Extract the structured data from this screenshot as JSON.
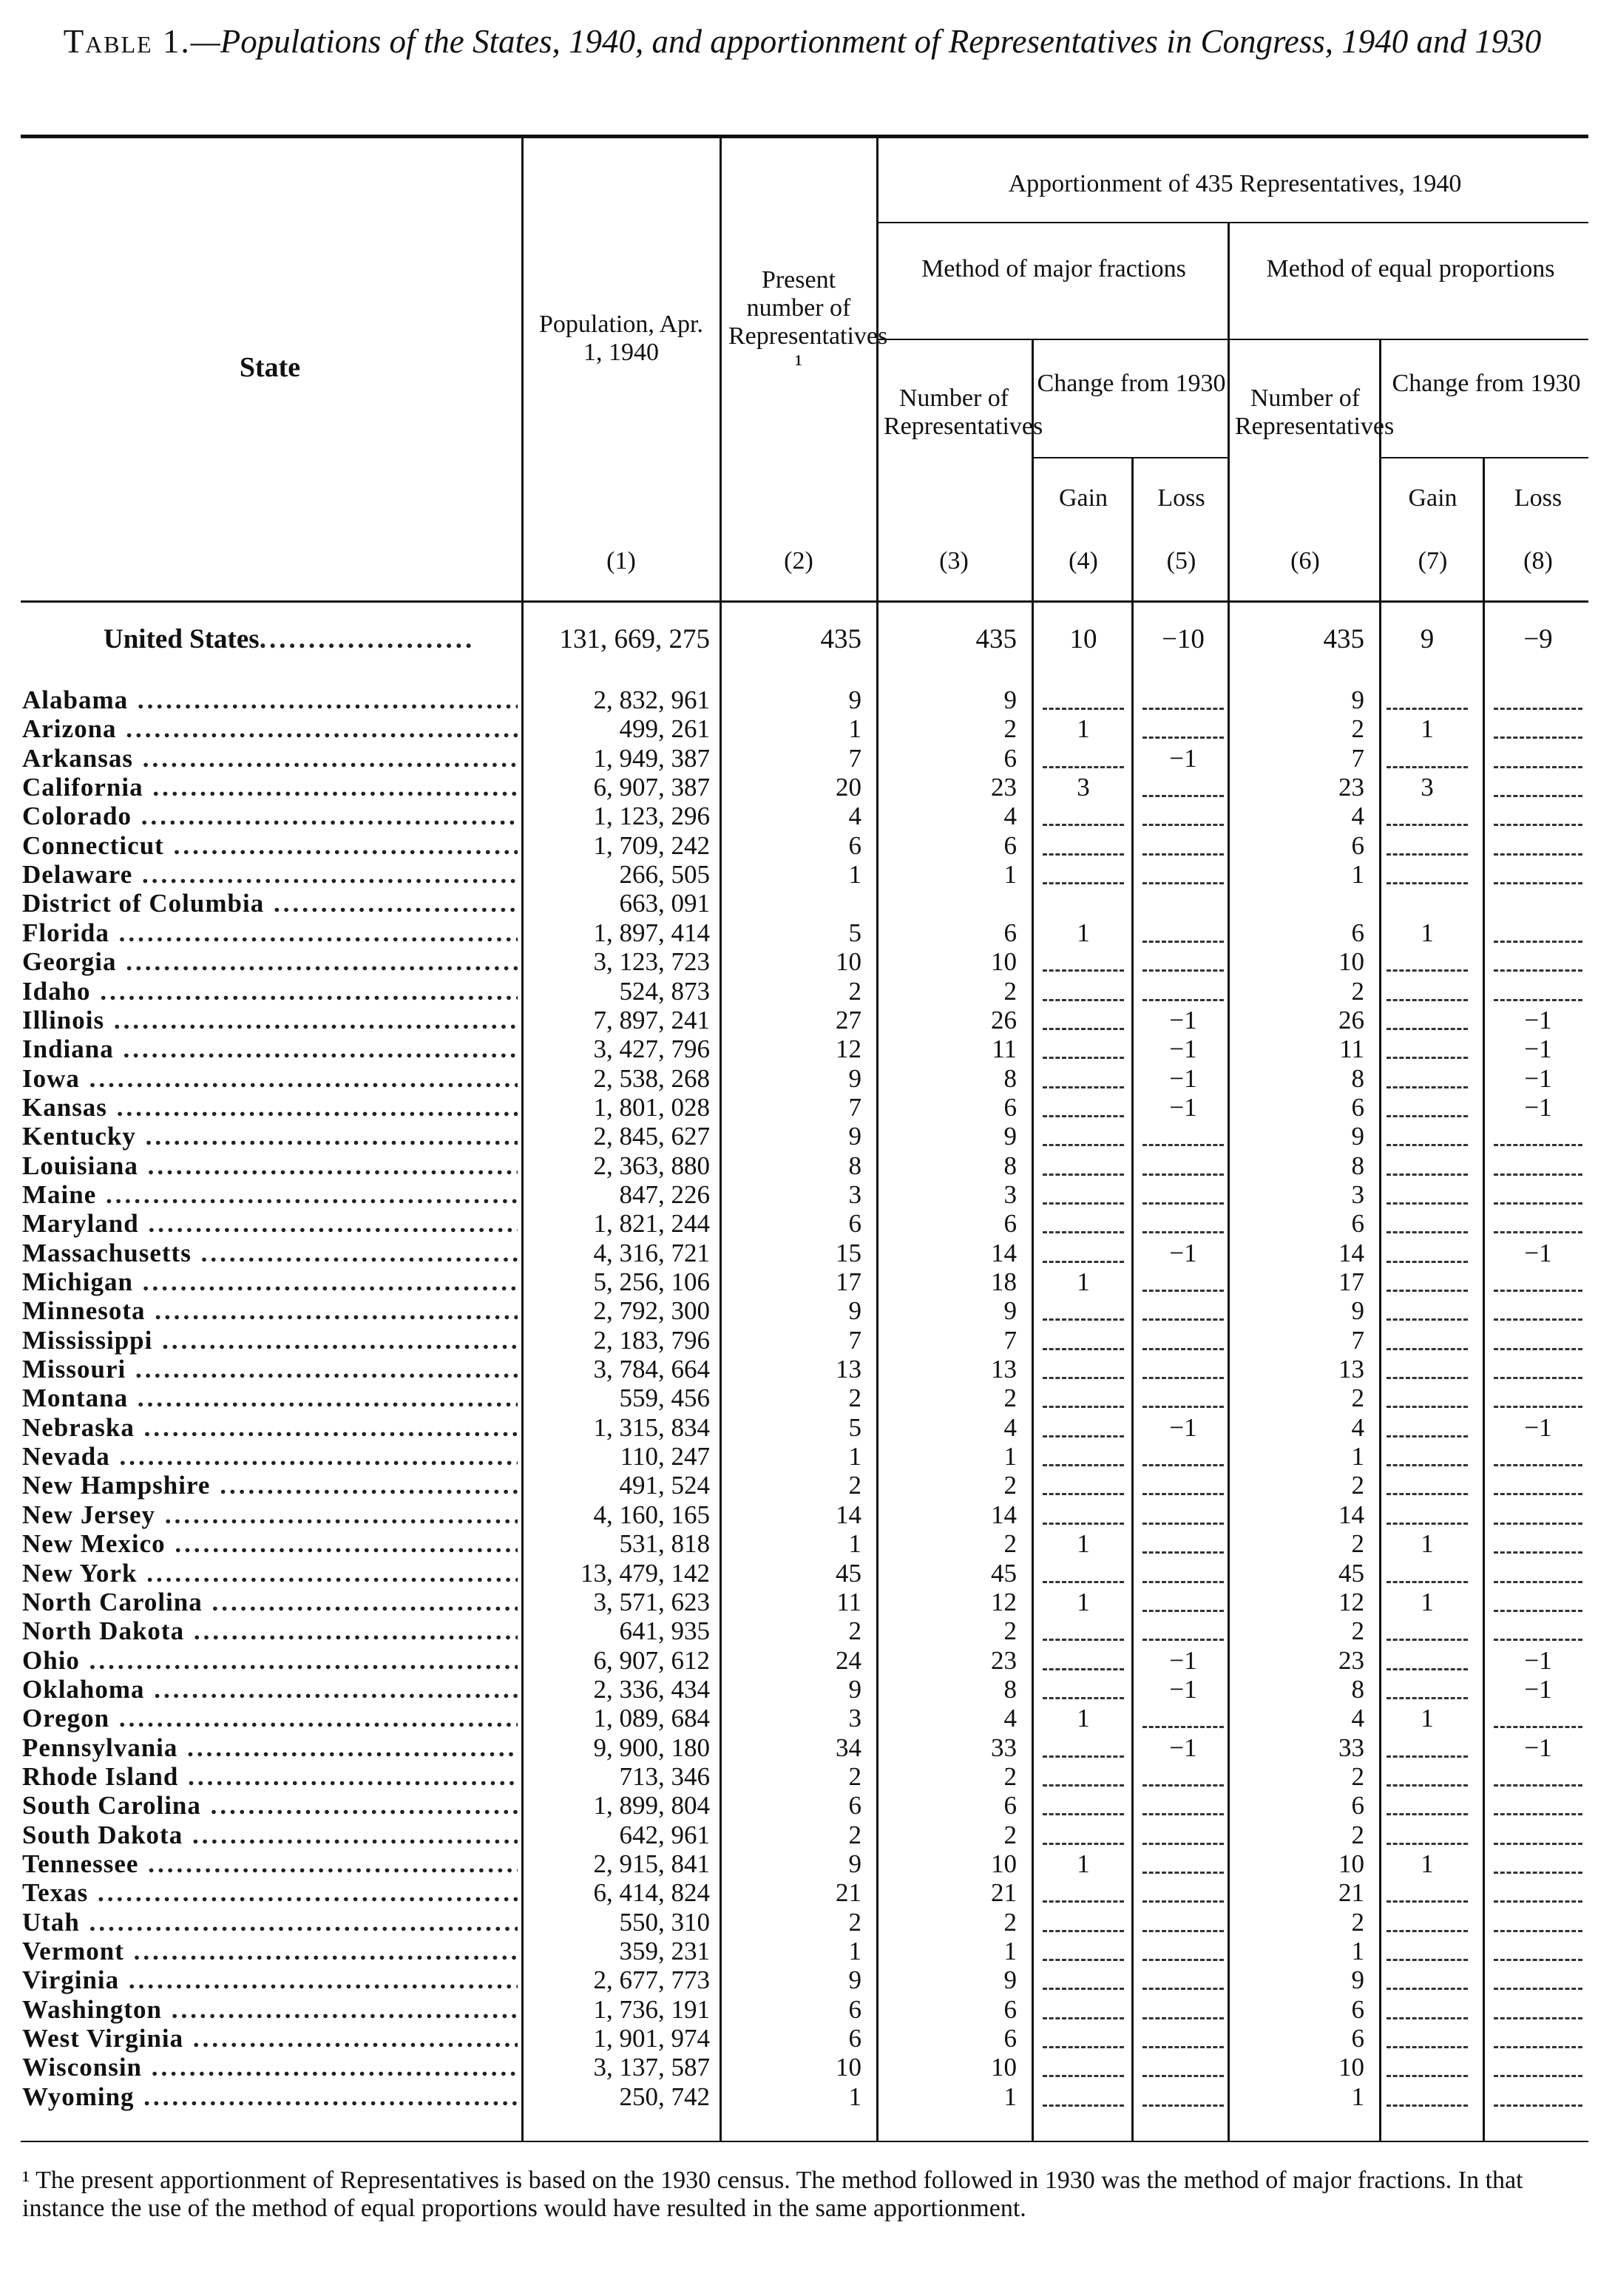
{
  "title": {
    "lead": "Table 1.",
    "text": "—Populations of the States, 1940, and apportionment of Representatives in Congress, 1940 and 1930"
  },
  "headers": {
    "state": "State",
    "population": "Population, Apr. 1, 1940",
    "present": "Present number of Representatives ¹",
    "apportionment": "Apportionment of 435 Representatives, 1940",
    "major": "Method of major fractions",
    "equal": "Method of equal proportions",
    "number_reps_a": "Number of Representatives",
    "number_reps_b": "Number of Representatives",
    "change_a": "Change from 1930",
    "change_b": "Change from 1930",
    "gain_a": "Gain",
    "loss_a": "Loss",
    "gain_b": "Gain",
    "loss_b": "Loss",
    "colnums": [
      "(1)",
      "(2)",
      "(3)",
      "(4)",
      "(5)",
      "(6)",
      "(7)",
      "(8)"
    ]
  },
  "totals": {
    "state": "United States",
    "population": "131, 669, 275",
    "present": "435",
    "major_num": "435",
    "major_gain": "10",
    "major_loss": "−10",
    "equal_num": "435",
    "equal_gain": "9",
    "equal_loss": "−9"
  },
  "rows": [
    {
      "state": "Alabama",
      "pop": "2, 832, 961",
      "present": "9",
      "mf": "9",
      "mf_gain": "",
      "mf_loss": "",
      "ep": "9",
      "ep_gain": "",
      "ep_loss": ""
    },
    {
      "state": "Arizona",
      "pop": "499, 261",
      "present": "1",
      "mf": "2",
      "mf_gain": "1",
      "mf_loss": "",
      "ep": "2",
      "ep_gain": "1",
      "ep_loss": ""
    },
    {
      "state": "Arkansas",
      "pop": "1, 949, 387",
      "present": "7",
      "mf": "6",
      "mf_gain": "",
      "mf_loss": "−1",
      "ep": "7",
      "ep_gain": "",
      "ep_loss": ""
    },
    {
      "state": "California",
      "pop": "6, 907, 387",
      "present": "20",
      "mf": "23",
      "mf_gain": "3",
      "mf_loss": "",
      "ep": "23",
      "ep_gain": "3",
      "ep_loss": ""
    },
    {
      "state": "Colorado",
      "pop": "1, 123, 296",
      "present": "4",
      "mf": "4",
      "mf_gain": "",
      "mf_loss": "",
      "ep": "4",
      "ep_gain": "",
      "ep_loss": ""
    },
    {
      "state": "Connecticut",
      "pop": "1, 709, 242",
      "present": "6",
      "mf": "6",
      "mf_gain": "",
      "mf_loss": "",
      "ep": "6",
      "ep_gain": "",
      "ep_loss": ""
    },
    {
      "state": "Delaware",
      "pop": "266, 505",
      "present": "1",
      "mf": "1",
      "mf_gain": "",
      "mf_loss": "",
      "ep": "1",
      "ep_gain": "",
      "ep_loss": ""
    },
    {
      "state": "District of Columbia",
      "pop": "663, 091",
      "present": "",
      "mf": "",
      "mf_gain": "",
      "mf_loss": "",
      "ep": "",
      "ep_gain": "",
      "ep_loss": "",
      "nodash": true
    },
    {
      "state": "Florida",
      "pop": "1, 897, 414",
      "present": "5",
      "mf": "6",
      "mf_gain": "1",
      "mf_loss": "",
      "ep": "6",
      "ep_gain": "1",
      "ep_loss": ""
    },
    {
      "state": "Georgia",
      "pop": "3, 123, 723",
      "present": "10",
      "mf": "10",
      "mf_gain": "",
      "mf_loss": "",
      "ep": "10",
      "ep_gain": "",
      "ep_loss": ""
    },
    {
      "state": "Idaho",
      "pop": "524, 873",
      "present": "2",
      "mf": "2",
      "mf_gain": "",
      "mf_loss": "",
      "ep": "2",
      "ep_gain": "",
      "ep_loss": ""
    },
    {
      "state": "Illinois",
      "pop": "7, 897, 241",
      "present": "27",
      "mf": "26",
      "mf_gain": "",
      "mf_loss": "−1",
      "ep": "26",
      "ep_gain": "",
      "ep_loss": "−1"
    },
    {
      "state": "Indiana",
      "pop": "3, 427, 796",
      "present": "12",
      "mf": "11",
      "mf_gain": "",
      "mf_loss": "−1",
      "ep": "11",
      "ep_gain": "",
      "ep_loss": "−1"
    },
    {
      "state": "Iowa",
      "pop": "2, 538, 268",
      "present": "9",
      "mf": "8",
      "mf_gain": "",
      "mf_loss": "−1",
      "ep": "8",
      "ep_gain": "",
      "ep_loss": "−1"
    },
    {
      "state": "Kansas",
      "pop": "1, 801, 028",
      "present": "7",
      "mf": "6",
      "mf_gain": "",
      "mf_loss": "−1",
      "ep": "6",
      "ep_gain": "",
      "ep_loss": "−1"
    },
    {
      "state": "Kentucky",
      "pop": "2, 845, 627",
      "present": "9",
      "mf": "9",
      "mf_gain": "",
      "mf_loss": "",
      "ep": "9",
      "ep_gain": "",
      "ep_loss": ""
    },
    {
      "state": "Louisiana",
      "pop": "2, 363, 880",
      "present": "8",
      "mf": "8",
      "mf_gain": "",
      "mf_loss": "",
      "ep": "8",
      "ep_gain": "",
      "ep_loss": ""
    },
    {
      "state": "Maine",
      "pop": "847, 226",
      "present": "3",
      "mf": "3",
      "mf_gain": "",
      "mf_loss": "",
      "ep": "3",
      "ep_gain": "",
      "ep_loss": ""
    },
    {
      "state": "Maryland",
      "pop": "1, 821, 244",
      "present": "6",
      "mf": "6",
      "mf_gain": "",
      "mf_loss": "",
      "ep": "6",
      "ep_gain": "",
      "ep_loss": ""
    },
    {
      "state": "Massachusetts",
      "pop": "4, 316, 721",
      "present": "15",
      "mf": "14",
      "mf_gain": "",
      "mf_loss": "−1",
      "ep": "14",
      "ep_gain": "",
      "ep_loss": "−1"
    },
    {
      "state": "Michigan",
      "pop": "5, 256, 106",
      "present": "17",
      "mf": "18",
      "mf_gain": "1",
      "mf_loss": "",
      "ep": "17",
      "ep_gain": "",
      "ep_loss": ""
    },
    {
      "state": "Minnesota",
      "pop": "2, 792, 300",
      "present": "9",
      "mf": "9",
      "mf_gain": "",
      "mf_loss": "",
      "ep": "9",
      "ep_gain": "",
      "ep_loss": ""
    },
    {
      "state": "Mississippi",
      "pop": "2, 183, 796",
      "present": "7",
      "mf": "7",
      "mf_gain": "",
      "mf_loss": "",
      "ep": "7",
      "ep_gain": "",
      "ep_loss": ""
    },
    {
      "state": "Missouri",
      "pop": "3, 784, 664",
      "present": "13",
      "mf": "13",
      "mf_gain": "",
      "mf_loss": "",
      "ep": "13",
      "ep_gain": "",
      "ep_loss": ""
    },
    {
      "state": "Montana",
      "pop": "559, 456",
      "present": "2",
      "mf": "2",
      "mf_gain": "",
      "mf_loss": "",
      "ep": "2",
      "ep_gain": "",
      "ep_loss": ""
    },
    {
      "state": "Nebraska",
      "pop": "1, 315, 834",
      "present": "5",
      "mf": "4",
      "mf_gain": "",
      "mf_loss": "−1",
      "ep": "4",
      "ep_gain": "",
      "ep_loss": "−1"
    },
    {
      "state": "Nevada",
      "pop": "110, 247",
      "present": "1",
      "mf": "1",
      "mf_gain": "",
      "mf_loss": "",
      "ep": "1",
      "ep_gain": "",
      "ep_loss": ""
    },
    {
      "state": "New Hampshire",
      "pop": "491, 524",
      "present": "2",
      "mf": "2",
      "mf_gain": "",
      "mf_loss": "",
      "ep": "2",
      "ep_gain": "",
      "ep_loss": ""
    },
    {
      "state": "New Jersey",
      "pop": "4, 160, 165",
      "present": "14",
      "mf": "14",
      "mf_gain": "",
      "mf_loss": "",
      "ep": "14",
      "ep_gain": "",
      "ep_loss": ""
    },
    {
      "state": "New Mexico",
      "pop": "531, 818",
      "present": "1",
      "mf": "2",
      "mf_gain": "1",
      "mf_loss": "",
      "ep": "2",
      "ep_gain": "1",
      "ep_loss": ""
    },
    {
      "state": "New York",
      "pop": "13, 479, 142",
      "present": "45",
      "mf": "45",
      "mf_gain": "",
      "mf_loss": "",
      "ep": "45",
      "ep_gain": "",
      "ep_loss": ""
    },
    {
      "state": "North Carolina",
      "pop": "3, 571, 623",
      "present": "11",
      "mf": "12",
      "mf_gain": "1",
      "mf_loss": "",
      "ep": "12",
      "ep_gain": "1",
      "ep_loss": ""
    },
    {
      "state": "North Dakota",
      "pop": "641, 935",
      "present": "2",
      "mf": "2",
      "mf_gain": "",
      "mf_loss": "",
      "ep": "2",
      "ep_gain": "",
      "ep_loss": ""
    },
    {
      "state": "Ohio",
      "pop": "6, 907, 612",
      "present": "24",
      "mf": "23",
      "mf_gain": "",
      "mf_loss": "−1",
      "ep": "23",
      "ep_gain": "",
      "ep_loss": "−1"
    },
    {
      "state": "Oklahoma",
      "pop": "2, 336, 434",
      "present": "9",
      "mf": "8",
      "mf_gain": "",
      "mf_loss": "−1",
      "ep": "8",
      "ep_gain": "",
      "ep_loss": "−1"
    },
    {
      "state": "Oregon",
      "pop": "1, 089, 684",
      "present": "3",
      "mf": "4",
      "mf_gain": "1",
      "mf_loss": "",
      "ep": "4",
      "ep_gain": "1",
      "ep_loss": ""
    },
    {
      "state": "Pennsylvania",
      "pop": "9, 900, 180",
      "present": "34",
      "mf": "33",
      "mf_gain": "",
      "mf_loss": "−1",
      "ep": "33",
      "ep_gain": "",
      "ep_loss": "−1"
    },
    {
      "state": "Rhode Island",
      "pop": "713, 346",
      "present": "2",
      "mf": "2",
      "mf_gain": "",
      "mf_loss": "",
      "ep": "2",
      "ep_gain": "",
      "ep_loss": ""
    },
    {
      "state": "South Carolina",
      "pop": "1, 899, 804",
      "present": "6",
      "mf": "6",
      "mf_gain": "",
      "mf_loss": "",
      "ep": "6",
      "ep_gain": "",
      "ep_loss": ""
    },
    {
      "state": "South Dakota",
      "pop": "642, 961",
      "present": "2",
      "mf": "2",
      "mf_gain": "",
      "mf_loss": "",
      "ep": "2",
      "ep_gain": "",
      "ep_loss": ""
    },
    {
      "state": "Tennessee",
      "pop": "2, 915, 841",
      "present": "9",
      "mf": "10",
      "mf_gain": "1",
      "mf_loss": "",
      "ep": "10",
      "ep_gain": "1",
      "ep_loss": ""
    },
    {
      "state": "Texas",
      "pop": "6, 414, 824",
      "present": "21",
      "mf": "21",
      "mf_gain": "",
      "mf_loss": "",
      "ep": "21",
      "ep_gain": "",
      "ep_loss": ""
    },
    {
      "state": "Utah",
      "pop": "550, 310",
      "present": "2",
      "mf": "2",
      "mf_gain": "",
      "mf_loss": "",
      "ep": "2",
      "ep_gain": "",
      "ep_loss": ""
    },
    {
      "state": "Vermont",
      "pop": "359, 231",
      "present": "1",
      "mf": "1",
      "mf_gain": "",
      "mf_loss": "",
      "ep": "1",
      "ep_gain": "",
      "ep_loss": ""
    },
    {
      "state": "Virginia",
      "pop": "2, 677, 773",
      "present": "9",
      "mf": "9",
      "mf_gain": "",
      "mf_loss": "",
      "ep": "9",
      "ep_gain": "",
      "ep_loss": ""
    },
    {
      "state": "Washington",
      "pop": "1, 736, 191",
      "present": "6",
      "mf": "6",
      "mf_gain": "",
      "mf_loss": "",
      "ep": "6",
      "ep_gain": "",
      "ep_loss": ""
    },
    {
      "state": "West Virginia",
      "pop": "1, 901, 974",
      "present": "6",
      "mf": "6",
      "mf_gain": "",
      "mf_loss": "",
      "ep": "6",
      "ep_gain": "",
      "ep_loss": ""
    },
    {
      "state": "Wisconsin",
      "pop": "3, 137, 587",
      "present": "10",
      "mf": "10",
      "mf_gain": "",
      "mf_loss": "",
      "ep": "10",
      "ep_gain": "",
      "ep_loss": ""
    },
    {
      "state": "Wyoming",
      "pop": "250, 742",
      "present": "1",
      "mf": "1",
      "mf_gain": "",
      "mf_loss": "",
      "ep": "1",
      "ep_gain": "",
      "ep_loss": ""
    }
  ],
  "footnote": "¹ The present apportionment of Representatives is based on the 1930 census. The method followed in 1930 was the method of major fractions. In that instance the use of the method of equal proportions would have resulted in the same apportionment."
}
